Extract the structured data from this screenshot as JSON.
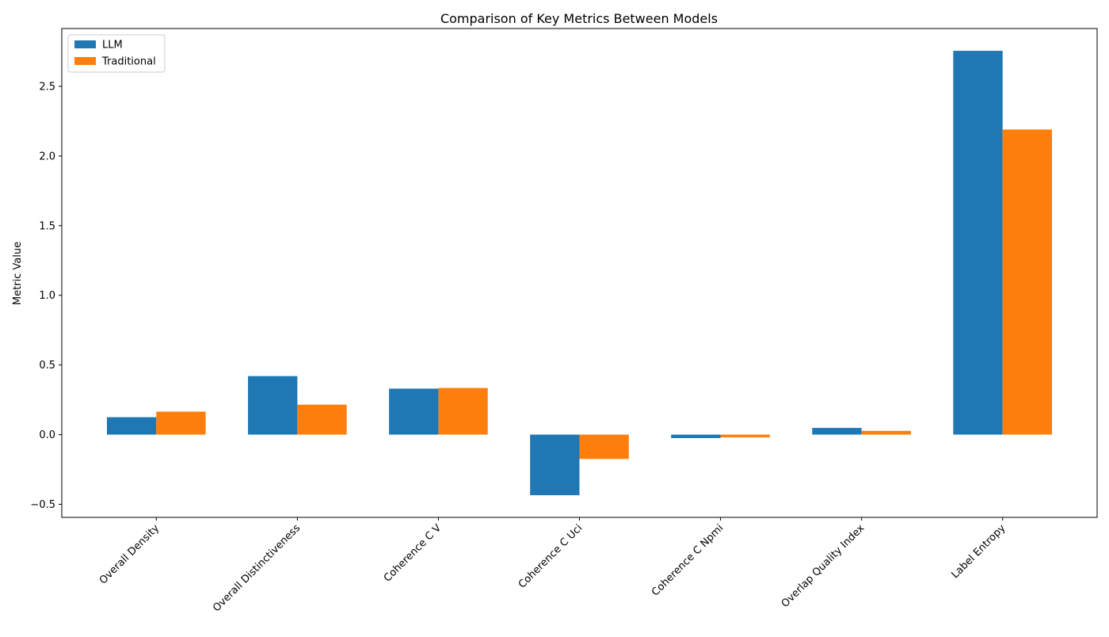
{
  "chart_data": {
    "type": "bar",
    "title": "Comparison of Key Metrics Between Models",
    "xlabel": "",
    "ylabel": "Metric Value",
    "categories": [
      "Overall Density",
      "Overall Distinctiveness",
      "Coherence C V",
      "Coherence C Uci",
      "Coherence C Npmi",
      "Overlap Quality Index",
      "Label Entropy"
    ],
    "series": [
      {
        "name": "LLM",
        "color": "#1f77b4",
        "values": [
          0.125,
          0.42,
          0.33,
          -0.435,
          -0.025,
          0.048,
          2.755
        ]
      },
      {
        "name": "Traditional",
        "color": "#ff7f0e",
        "values": [
          0.165,
          0.215,
          0.335,
          -0.175,
          -0.02,
          0.027,
          2.19
        ]
      }
    ],
    "ylim": [
      -0.594,
      2.915
    ],
    "yticks": [
      -0.5,
      0.0,
      0.5,
      1.0,
      1.5,
      2.0,
      2.5
    ],
    "ytick_labels": [
      "−0.5",
      "0.0",
      "0.5",
      "1.0",
      "1.5",
      "2.0",
      "2.5"
    ],
    "grid": false,
    "legend_position": "top-left"
  }
}
